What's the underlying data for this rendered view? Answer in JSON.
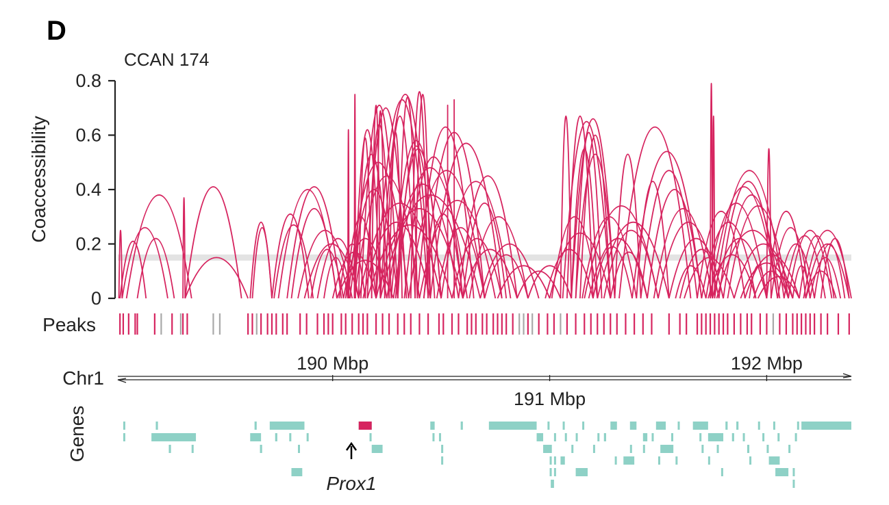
{
  "panel_label": "D",
  "title": "CCAN 174",
  "ylabel": "Coaccessibility",
  "peaks_label": "Peaks",
  "chrom_label": "Chr1",
  "genes_label": "Genes",
  "highlight_gene": "Prox1",
  "colors": {
    "connection": "#d6245f",
    "peak_in": "#d6245f",
    "peak_out": "#a9a9a9",
    "gene": "#8ed1c6",
    "highlight_gene": "#d6245f",
    "threshold": "#e3e3e3",
    "axis": "#222222"
  },
  "chart_data": {
    "type": "arc",
    "ylim": [
      0,
      0.8
    ],
    "yticks": [
      {
        "value": 0,
        "label": "0"
      },
      {
        "value": 0.2,
        "label": "0.2"
      },
      {
        "value": 0.4,
        "label": "0.4"
      },
      {
        "value": 0.6,
        "label": "0.6"
      },
      {
        "value": 0.8,
        "label": "0.8"
      }
    ],
    "xlim": [
      189.01,
      192.39
    ],
    "xticks": [
      {
        "value": 190,
        "label": "190 Mbp",
        "side": "top"
      },
      {
        "value": 191,
        "label": "191 Mbp",
        "side": "bottom"
      },
      {
        "value": 192,
        "label": "192 Mbp",
        "side": "top"
      }
    ],
    "threshold": 0.15,
    "connections": [
      [
        189.015,
        189.03,
        0.25
      ],
      [
        189.02,
        189.14,
        0.21
      ],
      [
        189.03,
        189.24,
        0.26
      ],
      [
        189.05,
        189.35,
        0.38
      ],
      [
        189.1,
        189.27,
        0.22
      ],
      [
        189.31,
        189.32,
        0.37
      ],
      [
        189.32,
        189.58,
        0.41
      ],
      [
        189.32,
        189.61,
        0.15
      ],
      [
        189.62,
        189.72,
        0.28
      ],
      [
        189.63,
        189.72,
        0.26
      ],
      [
        189.72,
        189.89,
        0.31
      ],
      [
        189.73,
        189.91,
        0.27
      ],
      [
        189.75,
        190.02,
        0.4
      ],
      [
        189.79,
        190.04,
        0.41
      ],
      [
        189.81,
        190.02,
        0.33
      ],
      [
        189.84,
        190.09,
        0.25
      ],
      [
        189.87,
        190.12,
        0.2
      ],
      [
        189.9,
        190.05,
        0.18
      ],
      [
        189.93,
        190.12,
        0.22
      ],
      [
        189.96,
        190.07,
        0.15
      ],
      [
        190.07,
        190.075,
        0.62
      ],
      [
        190.1,
        190.105,
        0.75
      ],
      [
        190.1,
        190.22,
        0.62
      ],
      [
        190.1,
        190.26,
        0.53
      ],
      [
        190.12,
        190.18,
        0.59
      ],
      [
        190.13,
        190.3,
        0.71
      ],
      [
        190.15,
        190.34,
        0.7
      ],
      [
        190.16,
        190.27,
        0.64
      ],
      [
        190.18,
        190.22,
        0.71
      ],
      [
        190.2,
        190.24,
        0.69
      ],
      [
        190.2,
        190.44,
        0.73
      ],
      [
        190.22,
        190.45,
        0.75
      ],
      [
        190.24,
        190.38,
        0.67
      ],
      [
        190.26,
        190.32,
        0.61
      ],
      [
        190.27,
        190.5,
        0.58
      ],
      [
        190.29,
        190.5,
        0.55
      ],
      [
        190.3,
        190.39,
        0.74
      ],
      [
        190.3,
        190.47,
        0.56
      ],
      [
        190.36,
        190.44,
        0.76
      ],
      [
        190.38,
        190.45,
        0.75
      ],
      [
        190.39,
        190.65,
        0.63
      ],
      [
        190.42,
        190.7,
        0.61
      ],
      [
        190.45,
        190.78,
        0.57
      ],
      [
        190.5,
        190.82,
        0.43
      ],
      [
        190.53,
        190.53,
        0.71
      ],
      [
        190.56,
        190.56,
        0.73
      ],
      [
        190.58,
        190.85,
        0.45
      ],
      [
        190.6,
        190.8,
        0.35
      ],
      [
        190.63,
        190.9,
        0.3
      ],
      [
        190.07,
        190.35,
        0.5
      ],
      [
        190.1,
        190.4,
        0.45
      ],
      [
        190.08,
        190.3,
        0.4
      ],
      [
        190.12,
        190.5,
        0.35
      ],
      [
        190.06,
        190.2,
        0.3
      ],
      [
        190.14,
        190.45,
        0.28
      ],
      [
        190.05,
        190.25,
        0.22
      ],
      [
        190.16,
        190.55,
        0.27
      ],
      [
        190.2,
        190.6,
        0.33
      ],
      [
        190.22,
        190.68,
        0.38
      ],
      [
        190.25,
        190.58,
        0.42
      ],
      [
        190.28,
        190.62,
        0.48
      ],
      [
        190.33,
        190.6,
        0.52
      ],
      [
        190.35,
        190.7,
        0.47
      ],
      [
        190.4,
        190.75,
        0.36
      ],
      [
        190.42,
        190.6,
        0.31
      ],
      [
        190.48,
        190.7,
        0.26
      ],
      [
        190.55,
        190.78,
        0.22
      ],
      [
        190.6,
        190.85,
        0.18
      ],
      [
        190.03,
        190.15,
        0.2
      ],
      [
        190.0,
        190.2,
        0.17
      ],
      [
        190.02,
        190.28,
        0.14
      ],
      [
        190.68,
        190.95,
        0.2
      ],
      [
        190.7,
        190.9,
        0.16
      ],
      [
        190.76,
        191.0,
        0.12
      ],
      [
        190.85,
        191.05,
        0.1
      ],
      [
        190.9,
        191.1,
        0.12
      ],
      [
        190.98,
        191.2,
        0.18
      ],
      [
        191.0,
        191.28,
        0.24
      ],
      [
        191.01,
        191.22,
        0.3
      ],
      [
        191.05,
        191.1,
        0.67
      ],
      [
        191.06,
        191.28,
        0.65
      ],
      [
        191.08,
        191.2,
        0.67
      ],
      [
        191.1,
        191.3,
        0.66
      ],
      [
        191.1,
        191.22,
        0.55
      ],
      [
        191.12,
        191.3,
        0.53
      ],
      [
        191.12,
        191.24,
        0.61
      ],
      [
        191.14,
        191.28,
        0.6
      ],
      [
        191.15,
        191.4,
        0.3
      ],
      [
        191.16,
        191.5,
        0.34
      ],
      [
        191.18,
        191.45,
        0.22
      ],
      [
        191.2,
        191.38,
        0.19
      ],
      [
        191.22,
        191.55,
        0.28
      ],
      [
        191.25,
        191.5,
        0.25
      ],
      [
        191.28,
        191.45,
        0.17
      ],
      [
        191.3,
        191.42,
        0.53
      ],
      [
        191.32,
        191.65,
        0.63
      ],
      [
        191.38,
        191.7,
        0.54
      ],
      [
        191.4,
        191.55,
        0.43
      ],
      [
        191.42,
        191.68,
        0.47
      ],
      [
        191.45,
        191.7,
        0.4
      ],
      [
        191.48,
        191.75,
        0.33
      ],
      [
        191.5,
        191.78,
        0.28
      ],
      [
        191.55,
        191.8,
        0.22
      ],
      [
        191.6,
        191.8,
        0.18
      ],
      [
        191.62,
        191.85,
        0.15
      ],
      [
        191.58,
        191.72,
        0.12
      ],
      [
        191.74,
        191.75,
        0.79
      ],
      [
        191.75,
        191.76,
        0.67
      ],
      [
        191.68,
        191.9,
        0.32
      ],
      [
        191.7,
        191.95,
        0.28
      ],
      [
        191.72,
        192.0,
        0.35
      ],
      [
        191.74,
        192.05,
        0.41
      ],
      [
        191.76,
        192.08,
        0.47
      ],
      [
        191.78,
        192.05,
        0.43
      ],
      [
        191.8,
        192.06,
        0.38
      ],
      [
        191.82,
        192.1,
        0.34
      ],
      [
        191.75,
        192.0,
        0.22
      ],
      [
        191.73,
        191.95,
        0.16
      ],
      [
        191.77,
        192.1,
        0.25
      ],
      [
        191.85,
        192.12,
        0.2
      ],
      [
        191.9,
        192.15,
        0.16
      ],
      [
        191.88,
        192.12,
        0.13
      ],
      [
        191.92,
        192.0,
        0.12
      ],
      [
        191.94,
        192.1,
        0.1
      ],
      [
        191.96,
        192.15,
        0.08
      ],
      [
        192.0,
        192.02,
        0.55
      ],
      [
        192.0,
        192.18,
        0.32
      ],
      [
        192.02,
        192.2,
        0.26
      ],
      [
        192.05,
        192.22,
        0.2
      ],
      [
        192.08,
        192.27,
        0.23
      ],
      [
        192.1,
        192.3,
        0.25
      ],
      [
        192.12,
        192.2,
        0.12
      ],
      [
        192.15,
        192.31,
        0.23
      ],
      [
        192.17,
        192.39,
        0.25
      ],
      [
        192.18,
        192.38,
        0.2
      ],
      [
        192.2,
        192.34,
        0.15
      ],
      [
        192.22,
        192.36,
        0.2
      ],
      [
        192.25,
        192.38,
        0.22
      ],
      [
        192.18,
        192.32,
        0.1
      ]
    ],
    "peaks": [
      [
        189.02,
        true
      ],
      [
        189.035,
        true
      ],
      [
        189.06,
        true
      ],
      [
        189.09,
        true
      ],
      [
        189.1,
        true
      ],
      [
        189.18,
        true
      ],
      [
        189.21,
        false
      ],
      [
        189.26,
        true
      ],
      [
        189.3,
        false
      ],
      [
        189.31,
        true
      ],
      [
        189.33,
        true
      ],
      [
        189.45,
        false
      ],
      [
        189.48,
        false
      ],
      [
        189.61,
        true
      ],
      [
        189.63,
        true
      ],
      [
        189.65,
        false
      ],
      [
        189.67,
        true
      ],
      [
        189.7,
        true
      ],
      [
        189.72,
        true
      ],
      [
        189.74,
        true
      ],
      [
        189.77,
        true
      ],
      [
        189.79,
        true
      ],
      [
        189.85,
        true
      ],
      [
        189.88,
        true
      ],
      [
        189.93,
        true
      ],
      [
        189.96,
        true
      ],
      [
        189.98,
        true
      ],
      [
        190.0,
        true
      ],
      [
        190.04,
        true
      ],
      [
        190.06,
        true
      ],
      [
        190.09,
        true
      ],
      [
        190.12,
        true
      ],
      [
        190.14,
        true
      ],
      [
        190.16,
        true
      ],
      [
        190.2,
        true
      ],
      [
        190.23,
        true
      ],
      [
        190.26,
        true
      ],
      [
        190.3,
        true
      ],
      [
        190.33,
        true
      ],
      [
        190.36,
        true
      ],
      [
        190.4,
        true
      ],
      [
        190.44,
        true
      ],
      [
        190.49,
        true
      ],
      [
        190.51,
        true
      ],
      [
        190.55,
        true
      ],
      [
        190.58,
        true
      ],
      [
        190.62,
        true
      ],
      [
        190.64,
        true
      ],
      [
        190.66,
        true
      ],
      [
        190.69,
        true
      ],
      [
        190.71,
        true
      ],
      [
        190.74,
        true
      ],
      [
        190.76,
        true
      ],
      [
        190.78,
        true
      ],
      [
        190.8,
        true
      ],
      [
        190.83,
        true
      ],
      [
        190.86,
        false
      ],
      [
        190.88,
        false
      ],
      [
        190.9,
        true
      ],
      [
        190.92,
        false
      ],
      [
        190.95,
        true
      ],
      [
        190.99,
        true
      ],
      [
        191.02,
        true
      ],
      [
        191.05,
        false
      ],
      [
        191.08,
        true
      ],
      [
        191.12,
        true
      ],
      [
        191.16,
        true
      ],
      [
        191.19,
        true
      ],
      [
        191.22,
        true
      ],
      [
        191.25,
        true
      ],
      [
        191.28,
        true
      ],
      [
        191.31,
        true
      ],
      [
        191.35,
        true
      ],
      [
        191.39,
        true
      ],
      [
        191.43,
        true
      ],
      [
        191.47,
        true
      ],
      [
        191.55,
        true
      ],
      [
        191.6,
        true
      ],
      [
        191.63,
        true
      ],
      [
        191.68,
        true
      ],
      [
        191.7,
        true
      ],
      [
        191.72,
        true
      ],
      [
        191.74,
        true
      ],
      [
        191.76,
        true
      ],
      [
        191.78,
        true
      ],
      [
        191.8,
        true
      ],
      [
        191.82,
        true
      ],
      [
        191.85,
        true
      ],
      [
        191.88,
        true
      ],
      [
        191.91,
        true
      ],
      [
        191.93,
        true
      ],
      [
        191.97,
        true
      ],
      [
        192.0,
        true
      ],
      [
        192.03,
        false
      ],
      [
        192.06,
        true
      ],
      [
        192.09,
        true
      ],
      [
        192.12,
        true
      ],
      [
        192.14,
        true
      ],
      [
        192.16,
        true
      ],
      [
        192.18,
        true
      ],
      [
        192.2,
        true
      ],
      [
        192.22,
        true
      ],
      [
        192.25,
        true
      ],
      [
        192.28,
        true
      ],
      [
        192.33,
        true
      ],
      [
        192.38,
        true
      ]
    ],
    "genes": [
      [
        189.035,
        189.04,
        0
      ],
      [
        189.035,
        189.04,
        1
      ],
      [
        189.185,
        189.195,
        0
      ],
      [
        189.165,
        189.37,
        1
      ],
      [
        189.245,
        189.255,
        2
      ],
      [
        189.35,
        189.355,
        2
      ],
      [
        189.64,
        189.65,
        0
      ],
      [
        189.62,
        189.67,
        1
      ],
      [
        189.665,
        189.675,
        2
      ],
      [
        189.71,
        189.87,
        0
      ],
      [
        189.735,
        189.745,
        1
      ],
      [
        189.8,
        189.805,
        1
      ],
      [
        189.84,
        189.845,
        2
      ],
      [
        189.81,
        189.86,
        4
      ],
      [
        189.88,
        189.885,
        1
      ],
      [
        190.12,
        190.18,
        0
      ],
      [
        190.17,
        190.175,
        1
      ],
      [
        190.18,
        190.23,
        2
      ],
      [
        190.45,
        190.47,
        0
      ],
      [
        190.46,
        190.465,
        1
      ],
      [
        190.49,
        190.495,
        1
      ],
      [
        190.5,
        190.505,
        2
      ],
      [
        190.5,
        190.505,
        3
      ],
      [
        190.59,
        190.6,
        0
      ],
      [
        190.72,
        190.94,
        0
      ],
      [
        190.94,
        190.97,
        1
      ],
      [
        190.97,
        191.01,
        2
      ],
      [
        191.0,
        191.005,
        3
      ],
      [
        190.95,
        190.955,
        1
      ],
      [
        190.99,
        190.995,
        0
      ],
      [
        191.02,
        191.025,
        1
      ],
      [
        191.02,
        191.025,
        3
      ],
      [
        191.0,
        191.005,
        4
      ],
      [
        191.005,
        191.02,
        5
      ],
      [
        191.02,
        191.025,
        4
      ],
      [
        191.05,
        191.07,
        3
      ],
      [
        191.06,
        191.065,
        0
      ],
      [
        191.07,
        191.075,
        1
      ],
      [
        191.1,
        191.105,
        2
      ],
      [
        191.12,
        191.175,
        4
      ],
      [
        191.12,
        191.125,
        1
      ],
      [
        191.15,
        191.155,
        0
      ],
      [
        191.2,
        191.205,
        2
      ],
      [
        191.22,
        191.225,
        1
      ],
      [
        191.25,
        191.26,
        1
      ],
      [
        191.28,
        191.31,
        0
      ],
      [
        191.3,
        191.305,
        3
      ],
      [
        191.34,
        191.39,
        3
      ],
      [
        191.37,
        191.375,
        2
      ],
      [
        191.37,
        191.4,
        0
      ],
      [
        191.43,
        191.45,
        1
      ],
      [
        191.43,
        191.435,
        2
      ],
      [
        191.47,
        191.475,
        1
      ],
      [
        191.49,
        191.535,
        0
      ],
      [
        191.5,
        191.505,
        3
      ],
      [
        191.51,
        191.57,
        2
      ],
      [
        191.56,
        191.565,
        1
      ],
      [
        191.59,
        191.595,
        0
      ],
      [
        191.58,
        191.585,
        3
      ],
      [
        191.66,
        191.73,
        0
      ],
      [
        191.69,
        191.695,
        1
      ],
      [
        191.7,
        191.705,
        2
      ],
      [
        191.73,
        191.735,
        3
      ],
      [
        191.73,
        191.8,
        1
      ],
      [
        191.77,
        191.775,
        2
      ],
      [
        191.79,
        191.795,
        4
      ],
      [
        191.81,
        191.82,
        0
      ],
      [
        191.84,
        191.85,
        1
      ],
      [
        191.86,
        191.87,
        0
      ],
      [
        191.89,
        191.895,
        1
      ],
      [
        191.91,
        191.92,
        2
      ],
      [
        191.92,
        191.925,
        3
      ],
      [
        191.96,
        191.965,
        0
      ],
      [
        191.98,
        191.985,
        1
      ],
      [
        192.0,
        192.005,
        2
      ],
      [
        192.02,
        192.025,
        3
      ],
      [
        192.01,
        192.06,
        3
      ],
      [
        192.03,
        192.035,
        0
      ],
      [
        192.04,
        192.1,
        4
      ],
      [
        192.05,
        192.055,
        1
      ],
      [
        192.1,
        192.105,
        2
      ],
      [
        192.12,
        192.125,
        4
      ],
      [
        192.13,
        192.135,
        1
      ],
      [
        192.14,
        192.145,
        0
      ],
      [
        192.12,
        192.125,
        5
      ],
      [
        192.16,
        192.39,
        0
      ]
    ],
    "highlight_gene_pos": [
      190.12,
      190.18,
      0
    ]
  }
}
